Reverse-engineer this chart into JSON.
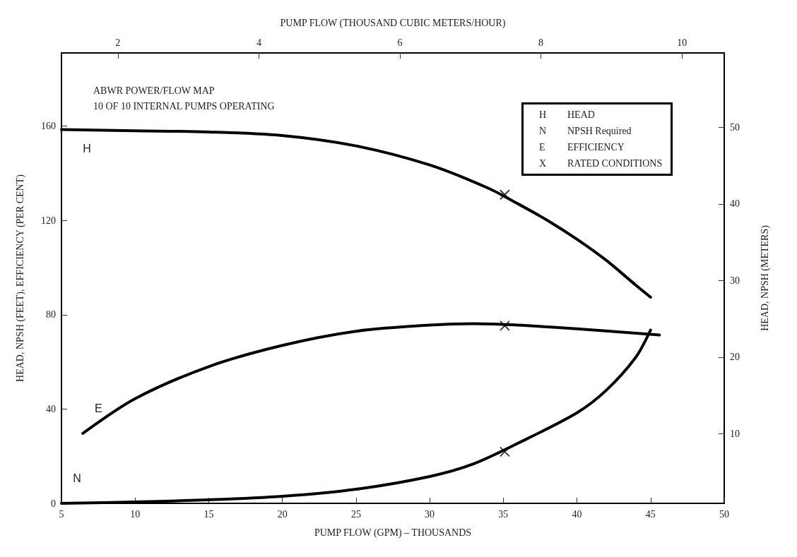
{
  "chart_data": {
    "type": "line",
    "xlabel": "PUMP FLOW (GPM) – THOUSANDS",
    "x2label": "PUMP FLOW (THOUSAND CUBIC METERS/HOUR)",
    "ylabel": "HEAD, NPSH (FEET), EFFICIENCY (PER CENT)",
    "y2label": "HEAD, NPSH (METERS)",
    "xlim": [
      5,
      50
    ],
    "xticks": [
      5,
      10,
      15,
      20,
      25,
      30,
      35,
      40,
      45,
      50
    ],
    "x2lim": [
      1.2,
      10.6
    ],
    "x2ticks": [
      2,
      4,
      6,
      8,
      10
    ],
    "ylim": [
      0,
      191
    ],
    "yticks": [
      0,
      40,
      80,
      120,
      160
    ],
    "y2lim": [
      0.9,
      59.7
    ],
    "y2ticks": [
      10,
      20,
      30,
      40,
      50
    ],
    "grid": false,
    "marker": "none",
    "line_style": "solid",
    "series": [
      {
        "name": "H",
        "color": "#000000",
        "x": [
          5,
          10,
          15,
          20,
          25,
          30,
          34,
          36,
          38,
          40,
          42,
          44,
          45
        ],
        "values": [
          158.5,
          158,
          157.5,
          156,
          151.6,
          143.5,
          133.6,
          127,
          120,
          112,
          103,
          92.5,
          87.4
        ]
      },
      {
        "name": "E",
        "color": "#000000",
        "x": [
          6.45,
          10,
          15,
          20,
          25,
          30,
          33,
          36,
          40,
          45.6
        ],
        "values": [
          29.7,
          44.4,
          58,
          67,
          73,
          75.6,
          76.2,
          75.6,
          74,
          71.4
        ]
      },
      {
        "name": "N",
        "color": "#000000",
        "x": [
          5,
          10,
          15,
          20,
          25,
          30,
          33,
          36,
          40,
          42,
          44,
          45
        ],
        "values": [
          0,
          0.6,
          1.5,
          3,
          6,
          11.4,
          16.8,
          25.5,
          38.4,
          48,
          62,
          73.5
        ]
      },
      {
        "type": "scatter",
        "marker": "cross",
        "color": "#000000",
        "x": [
          35.1,
          35.1,
          35.1
        ],
        "values": [
          130.9,
          75.3,
          21.9
        ]
      }
    ],
    "annotations": [
      "ABWR POWER/FLOW MAP",
      "10 OF 10 INTERNAL PUMPS OPERATING",
      "H HEAD",
      "N NPSH Required",
      "E EFFICIENCY",
      "X RATED CONDITIONS"
    ]
  }
}
